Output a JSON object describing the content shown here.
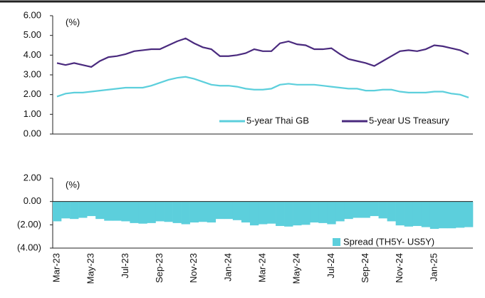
{
  "chart_data": [
    {
      "type": "line",
      "ylabel": "(%)",
      "ylim": [
        0,
        6
      ],
      "yticks": [
        {
          "value": 0,
          "label": "0.00"
        },
        {
          "value": 1,
          "label": "1.00"
        },
        {
          "value": 2,
          "label": "2.00"
        },
        {
          "value": 3,
          "label": "3.00"
        },
        {
          "value": 4,
          "label": "4.00"
        },
        {
          "value": 5,
          "label": "5.00"
        },
        {
          "value": 6,
          "label": "6.00"
        }
      ],
      "legend": "lower right",
      "series": [
        {
          "name": "5-year Thai GB",
          "color": "#5ccfdc",
          "values": [
            1.9,
            2.05,
            2.1,
            2.1,
            2.15,
            2.2,
            2.25,
            2.3,
            2.35,
            2.35,
            2.35,
            2.45,
            2.6,
            2.75,
            2.85,
            2.9,
            2.8,
            2.65,
            2.5,
            2.45,
            2.45,
            2.4,
            2.3,
            2.25,
            2.25,
            2.3,
            2.5,
            2.55,
            2.5,
            2.5,
            2.5,
            2.45,
            2.4,
            2.35,
            2.3,
            2.3,
            2.2,
            2.2,
            2.25,
            2.25,
            2.15,
            2.1,
            2.1,
            2.1,
            2.15,
            2.15,
            2.05,
            2.0,
            1.85
          ]
        },
        {
          "name": "5-year US Treasury",
          "color": "#4a2a7e",
          "values": [
            3.6,
            3.5,
            3.6,
            3.5,
            3.4,
            3.7,
            3.9,
            3.95,
            4.05,
            4.2,
            4.25,
            4.3,
            4.3,
            4.5,
            4.7,
            4.85,
            4.6,
            4.4,
            4.3,
            3.95,
            3.95,
            4.0,
            4.1,
            4.3,
            4.2,
            4.2,
            4.6,
            4.7,
            4.55,
            4.5,
            4.3,
            4.3,
            4.35,
            4.05,
            3.8,
            3.7,
            3.6,
            3.45,
            3.7,
            3.95,
            4.2,
            4.25,
            4.2,
            4.3,
            4.5,
            4.45,
            4.35,
            4.25,
            4.05
          ]
        }
      ]
    },
    {
      "type": "bar",
      "ylabel": "(%)",
      "ylim": [
        -4,
        2
      ],
      "yticks": [
        {
          "value": 2,
          "label": "2.00"
        },
        {
          "value": 0,
          "label": "0.00"
        },
        {
          "value": -2,
          "label": "(2.00)"
        },
        {
          "value": -4,
          "label": "(4.00)"
        }
      ],
      "legend": "lower right",
      "categories": [
        "Mar-23",
        null,
        null,
        null,
        "May-23",
        null,
        null,
        null,
        "Jul-23",
        null,
        null,
        null,
        "Sep-23",
        null,
        null,
        null,
        "Nov-23",
        null,
        null,
        null,
        "Jan-24",
        null,
        null,
        null,
        "Mar-24",
        null,
        null,
        null,
        "May-24",
        null,
        null,
        null,
        "Jul-24",
        null,
        null,
        null,
        "Sep-24",
        null,
        null,
        null,
        "Nov-24",
        null,
        null,
        null,
        "Jan-25",
        null,
        null,
        null,
        null
      ],
      "series": [
        {
          "name": "Spread (TH5Y- US5Y)",
          "color": "#5ccfdc",
          "values": [
            -1.7,
            -1.45,
            -1.5,
            -1.4,
            -1.25,
            -1.5,
            -1.65,
            -1.65,
            -1.7,
            -1.85,
            -1.9,
            -1.85,
            -1.7,
            -1.75,
            -1.85,
            -1.95,
            -1.8,
            -1.75,
            -1.8,
            -1.5,
            -1.5,
            -1.6,
            -1.8,
            -2.05,
            -1.95,
            -1.9,
            -2.1,
            -2.15,
            -2.05,
            -2.0,
            -1.8,
            -1.85,
            -1.95,
            -1.7,
            -1.5,
            -1.4,
            -1.4,
            -1.25,
            -1.45,
            -1.7,
            -2.05,
            -2.15,
            -2.1,
            -2.2,
            -2.35,
            -2.3,
            -2.3,
            -2.25,
            -2.2
          ]
        }
      ]
    }
  ]
}
